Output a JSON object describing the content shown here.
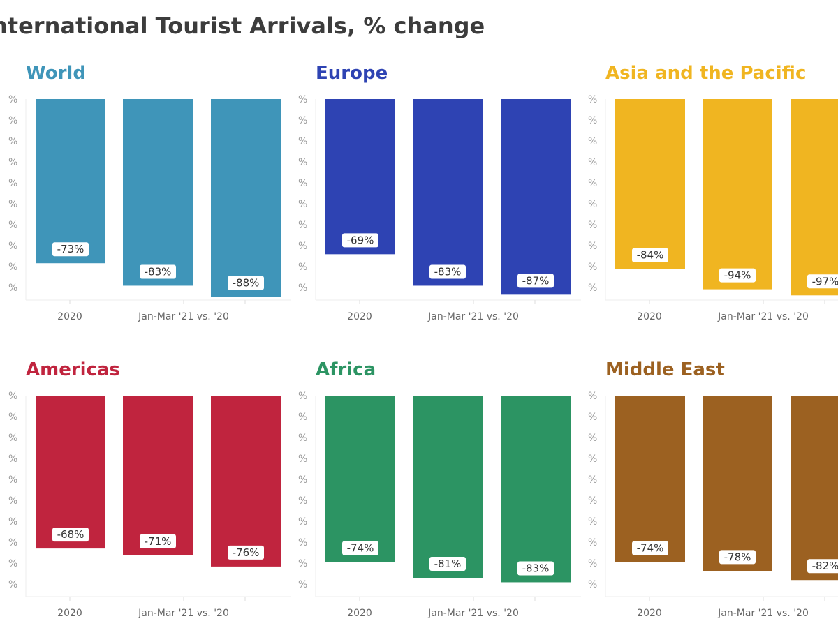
{
  "title": "nternational Tourist Arrivals, % change",
  "chart_data": [
    {
      "type": "bar",
      "title": "World",
      "color": "#3f95b9",
      "categories": [
        "2020",
        "Jan-Mar '21 vs. '20",
        ""
      ],
      "values": [
        -73,
        -83,
        -88
      ],
      "data_labels": [
        "-73%",
        "-83%",
        "-88%"
      ],
      "ylim": [
        -90,
        0
      ]
    },
    {
      "type": "bar",
      "title": "Europe",
      "color": "#2e43b3",
      "categories": [
        "2020",
        "Jan-Mar '21 vs. '20",
        ""
      ],
      "values": [
        -69,
        -83,
        -87
      ],
      "data_labels": [
        "-69%",
        "-83%",
        "-87%"
      ],
      "ylim": [
        -90,
        0
      ]
    },
    {
      "type": "bar",
      "title": "Asia and the Pacific",
      "color": "#f0b521",
      "categories": [
        "2020",
        "Jan-Mar '21 vs. '20",
        ""
      ],
      "values": [
        -84,
        -94,
        -97
      ],
      "data_labels": [
        "-84%",
        "-94%",
        "-97%"
      ],
      "ylim": [
        -100,
        0
      ]
    },
    {
      "type": "bar",
      "title": "Americas",
      "color": "#c0243e",
      "categories": [
        "2020",
        "Jan-Mar '21 vs. '20",
        ""
      ],
      "values": [
        -68,
        -71,
        -76
      ],
      "data_labels": [
        "-68%",
        "-71%",
        "-76%"
      ],
      "ylim": [
        -90,
        0
      ]
    },
    {
      "type": "bar",
      "title": "Africa",
      "color": "#2c9463",
      "categories": [
        "2020",
        "Jan-Mar '21 vs. '20",
        ""
      ],
      "values": [
        -74,
        -81,
        -83
      ],
      "data_labels": [
        "-74%",
        "-81%",
        "-83%"
      ],
      "ylim": [
        -90,
        0
      ]
    },
    {
      "type": "bar",
      "title": "Middle East",
      "color": "#9c6121",
      "categories": [
        "2020",
        "Jan-Mar '21 vs. '20",
        ""
      ],
      "values": [
        -74,
        -78,
        -82
      ],
      "data_labels": [
        "-74%",
        "-78%",
        "-82%"
      ],
      "ylim": [
        -90,
        0
      ]
    }
  ]
}
